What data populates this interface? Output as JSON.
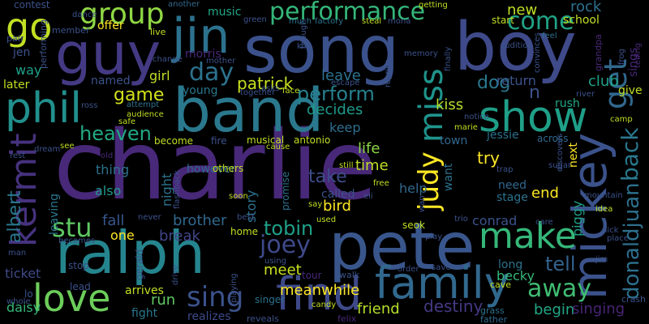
{
  "words": [
    {
      "text": "charlie",
      "color": "#482878"
    },
    {
      "text": "boy",
      "color": "#3e4a89"
    },
    {
      "text": "song",
      "color": "#3b518b"
    },
    {
      "text": "band",
      "color": "#2a788e"
    },
    {
      "text": "ralph",
      "color": "#25858e"
    },
    {
      "text": "pete",
      "color": "#39568c"
    },
    {
      "text": "guy",
      "color": "#443a83"
    },
    {
      "text": "jin",
      "color": "#2c728e"
    },
    {
      "text": "mickey",
      "color": "#3b528b"
    },
    {
      "text": "family",
      "color": "#31688e"
    },
    {
      "text": "phil",
      "color": "#21908d"
    },
    {
      "text": "show",
      "color": "#1f9f88"
    },
    {
      "text": "find",
      "color": "#3e4989"
    },
    {
      "text": "love",
      "color": "#6ccd5a"
    },
    {
      "text": "make",
      "color": "#35b779"
    },
    {
      "text": "kermit",
      "color": "#46327e"
    },
    {
      "text": "miss",
      "color": "#1f948c"
    },
    {
      "text": "get",
      "color": "#31688e"
    },
    {
      "text": "group",
      "color": "#8fd744"
    },
    {
      "text": "go",
      "color": "#c2df23"
    },
    {
      "text": "judy",
      "color": "#fde725"
    },
    {
      "text": "sing",
      "color": "#3b528b"
    },
    {
      "text": "away",
      "color": "#40bd72"
    },
    {
      "text": "donaldjuan",
      "color": "#2d708e"
    },
    {
      "text": "back",
      "color": "#2a788e"
    },
    {
      "text": "performance",
      "color": "#34b679"
    },
    {
      "text": "come",
      "color": "#20a386"
    },
    {
      "text": "joey",
      "color": "#3e4a89"
    },
    {
      "text": "tobin",
      "color": "#1fa088"
    },
    {
      "text": "stu",
      "color": "#5ec962"
    },
    {
      "text": "perform",
      "color": "#26818e"
    },
    {
      "text": "day",
      "color": "#2c728e"
    },
    {
      "text": "heaven",
      "color": "#22a884"
    },
    {
      "text": "albert",
      "color": "#2a778e"
    },
    {
      "text": "tell",
      "color": "#33638d"
    },
    {
      "text": "dog",
      "color": "#2a788e"
    },
    {
      "text": "game",
      "color": "#d2e21b"
    },
    {
      "text": "patrick",
      "color": "#c8e020"
    },
    {
      "text": "take",
      "color": "#3e4c8a"
    },
    {
      "text": "meanwhile",
      "color": "#fde725"
    },
    {
      "text": "friend",
      "color": "#b5de2b"
    },
    {
      "text": "destiny",
      "color": "#443983"
    },
    {
      "text": "begin",
      "color": "#22a884"
    },
    {
      "text": "singing",
      "color": "#482475"
    },
    {
      "text": "run",
      "color": "#5ec962"
    },
    {
      "text": "meet",
      "color": "#c8e020"
    },
    {
      "text": "fall",
      "color": "#39568c"
    },
    {
      "text": "brother",
      "color": "#31688e"
    },
    {
      "text": "break",
      "color": "#404688"
    },
    {
      "text": "bird",
      "color": "#fde725"
    },
    {
      "text": "decides",
      "color": "#1f9a8a"
    },
    {
      "text": "rock",
      "color": "#2c728e"
    },
    {
      "text": "new",
      "color": "#c0df25"
    },
    {
      "text": "kiss",
      "color": "#b5de2b"
    },
    {
      "text": "club",
      "color": "#1fa088"
    },
    {
      "text": "return",
      "color": "#3b528b"
    },
    {
      "text": "leave",
      "color": "#2c728e"
    },
    {
      "text": "life",
      "color": "#8bd646"
    },
    {
      "text": "time",
      "color": "#bddf26"
    },
    {
      "text": "help",
      "color": "#31688e"
    },
    {
      "text": "try",
      "color": "#fde725"
    },
    {
      "text": "end",
      "color": "#fde725"
    },
    {
      "text": "keep",
      "color": "#2e6f8e"
    },
    {
      "text": "story",
      "color": "#2d718e"
    },
    {
      "text": "one",
      "color": "#fde725"
    },
    {
      "text": "stage",
      "color": "#2c728e"
    },
    {
      "text": "becky",
      "color": "#35b779"
    },
    {
      "text": "conrad",
      "color": "#3b528b"
    },
    {
      "text": "girl",
      "color": "#c0df25"
    },
    {
      "text": "way",
      "color": "#1fa088"
    },
    {
      "text": "music",
      "color": "#22a884"
    },
    {
      "text": "morris",
      "color": "#482878"
    },
    {
      "text": "offer",
      "color": "#fde725"
    },
    {
      "text": "jessie",
      "color": "#2c728e"
    },
    {
      "text": "piggy",
      "color": "#1fa088"
    },
    {
      "text": "next",
      "color": "#fde725"
    },
    {
      "text": "thing",
      "color": "#2c728e"
    },
    {
      "text": "also",
      "color": "#1f9a8a"
    },
    {
      "text": "night",
      "color": "#2c728e"
    },
    {
      "text": "give",
      "color": "#c2df23"
    },
    {
      "text": "ticket",
      "color": "#3e4a89"
    },
    {
      "text": "daisy",
      "color": "#35b779"
    },
    {
      "text": "arrives",
      "color": "#c2df23"
    },
    {
      "text": "fight",
      "color": "#2a788e"
    },
    {
      "text": "realizes",
      "color": "#3e4a89"
    },
    {
      "text": "long",
      "color": "#2c728e"
    },
    {
      "text": "want",
      "color": "#2c728e"
    },
    {
      "text": "called",
      "color": "#3b528b"
    },
    {
      "text": "town",
      "color": "#31688e"
    },
    {
      "text": "need",
      "color": "#31688e"
    },
    {
      "text": "jen",
      "color": "#3b528b"
    },
    {
      "text": "later",
      "color": "#c2df23"
    },
    {
      "text": "named",
      "color": "#3b528b"
    },
    {
      "text": "young",
      "color": "#2a788e"
    },
    {
      "text": "however",
      "color": "#31688e"
    },
    {
      "text": "leaving",
      "color": "#2a788e"
    },
    {
      "text": "rush",
      "color": "#22a884"
    },
    {
      "text": "school",
      "color": "#c2df23"
    },
    {
      "text": "start",
      "color": "#c2df23"
    },
    {
      "text": "lead",
      "color": "#3b528b"
    },
    {
      "text": "stop",
      "color": "#3b528b"
    },
    {
      "text": "tour",
      "color": "#482878"
    },
    {
      "text": "singer",
      "color": "#2c728e"
    },
    {
      "text": "home",
      "color": "#c2df23"
    },
    {
      "text": "seok",
      "color": "#c2df23"
    },
    {
      "text": "gerald",
      "color": "#3b528b"
    },
    {
      "text": "sings",
      "color": "#482878"
    },
    {
      "text": "musical",
      "color": "#c2df23"
    },
    {
      "text": "antonio",
      "color": "#c2df23"
    },
    {
      "text": "become",
      "color": "#c2df23"
    },
    {
      "text": "fire",
      "color": "#3b528b"
    },
    {
      "text": "others",
      "color": "#c2df23"
    },
    {
      "text": "promise",
      "color": "#2c728e"
    },
    {
      "text": "walk",
      "color": "#3b528b"
    },
    {
      "text": "felix",
      "color": "#482878"
    },
    {
      "text": "reveals",
      "color": "#3b528b"
    },
    {
      "text": "grass",
      "color": "#2c728e"
    },
    {
      "text": "father",
      "color": "#31688e"
    },
    {
      "text": "cave",
      "color": "#c2df23"
    },
    {
      "text": "crash",
      "color": "#3b528b"
    },
    {
      "text": "across",
      "color": "#31688e"
    },
    {
      "text": "contest",
      "color": "#3b528b"
    },
    {
      "text": "member",
      "color": "#3b528b"
    },
    {
      "text": "performing",
      "color": "#3b528b"
    },
    {
      "text": "pair",
      "color": "#3b528b"
    },
    {
      "text": "dance",
      "color": "#3b528b"
    },
    {
      "text": "live",
      "color": "#c2df23"
    },
    {
      "text": "another",
      "color": "#31688e"
    },
    {
      "text": "green",
      "color": "#3b528b"
    },
    {
      "text": "much",
      "color": "#2c728e"
    },
    {
      "text": "factory",
      "color": "#2c728e"
    },
    {
      "text": "steal",
      "color": "#c2df23"
    },
    {
      "text": "mona",
      "color": "#3b528b"
    },
    {
      "text": "getting",
      "color": "#c2df23"
    },
    {
      "text": "feel",
      "color": "#2c728e"
    },
    {
      "text": "audition",
      "color": "#3b528b"
    },
    {
      "text": "grandpa",
      "color": "#482878"
    },
    {
      "text": "telling",
      "color": "#482878"
    },
    {
      "text": "memory",
      "color": "#3b528b"
    },
    {
      "text": "finally",
      "color": "#3b528b"
    },
    {
      "text": "escape",
      "color": "#3b528b"
    },
    {
      "text": "together",
      "color": "#3b528b"
    },
    {
      "text": "change",
      "color": "#3b528b"
    },
    {
      "text": "mother",
      "color": "#3b528b"
    },
    {
      "text": "attempt",
      "color": "#2c728e"
    },
    {
      "text": "audience",
      "color": "#c2df23"
    },
    {
      "text": "ross",
      "color": "#3b528b"
    },
    {
      "text": "asks",
      "color": "#3b528b"
    },
    {
      "text": "face",
      "color": "#c2df23"
    },
    {
      "text": "reprise",
      "color": "#3b528b"
    },
    {
      "text": "convinces",
      "color": "#3b528b"
    },
    {
      "text": "frog",
      "color": "#3b528b"
    },
    {
      "text": "river",
      "color": "#3b528b"
    },
    {
      "text": "notice",
      "color": "#3b528b"
    },
    {
      "text": "marie",
      "color": "#c2df23"
    },
    {
      "text": "camp",
      "color": "#c2df23"
    },
    {
      "text": "rest",
      "color": "#3b528b"
    },
    {
      "text": "dream",
      "color": "#3b528b"
    },
    {
      "text": "see",
      "color": "#c2df23"
    },
    {
      "text": "old",
      "color": "#482878"
    },
    {
      "text": "safe",
      "color": "#c2df23"
    },
    {
      "text": "cause",
      "color": "#c2df23"
    },
    {
      "text": "free",
      "color": "#c2df23"
    },
    {
      "text": "still",
      "color": "#c2df23"
    },
    {
      "text": "eli",
      "color": "#3b528b"
    },
    {
      "text": "soon",
      "color": "#c2df23"
    },
    {
      "text": "say",
      "color": "#c2df23"
    },
    {
      "text": "used",
      "color": "#c2df23"
    },
    {
      "text": "trio",
      "color": "#3b528b"
    },
    {
      "text": "care",
      "color": "#3b528b"
    },
    {
      "text": "place",
      "color": "#3b528b"
    },
    {
      "text": "nick",
      "color": "#3b528b"
    },
    {
      "text": "idea",
      "color": "#c2df23"
    },
    {
      "text": "mountain",
      "color": "#3b528b"
    },
    {
      "text": "sugar",
      "color": "#3b528b"
    },
    {
      "text": "trap",
      "color": "#3b528b"
    },
    {
      "text": "discovers",
      "color": "#3b528b"
    },
    {
      "text": "never",
      "color": "#3b528b"
    },
    {
      "text": "best",
      "color": "#3b528b"
    },
    {
      "text": "drive",
      "color": "#3b528b"
    },
    {
      "text": "flashback",
      "color": "#3b528b"
    },
    {
      "text": "becomes",
      "color": "#3b528b"
    },
    {
      "text": "man",
      "color": "#3b528b"
    },
    {
      "text": "kim",
      "color": "#3b528b"
    },
    {
      "text": "though",
      "color": "#3b528b"
    },
    {
      "text": "using",
      "color": "#3b528b"
    },
    {
      "text": "candy",
      "color": "#c2df23"
    },
    {
      "text": "playing",
      "color": "#3b528b"
    },
    {
      "text": "order",
      "color": "#3b528b"
    },
    {
      "text": "save",
      "color": "#3b528b"
    },
    {
      "text": "play",
      "color": "#3b528b"
    },
    {
      "text": "jim",
      "color": "#3b528b"
    },
    {
      "text": "whole",
      "color": "#3b528b"
    },
    {
      "text": "lo",
      "color": "#3b528b"
    },
    {
      "text": "n",
      "color": "#3b528b"
    },
    {
      "text": "wan",
      "color": "#3b528b"
    }
  ]
}
